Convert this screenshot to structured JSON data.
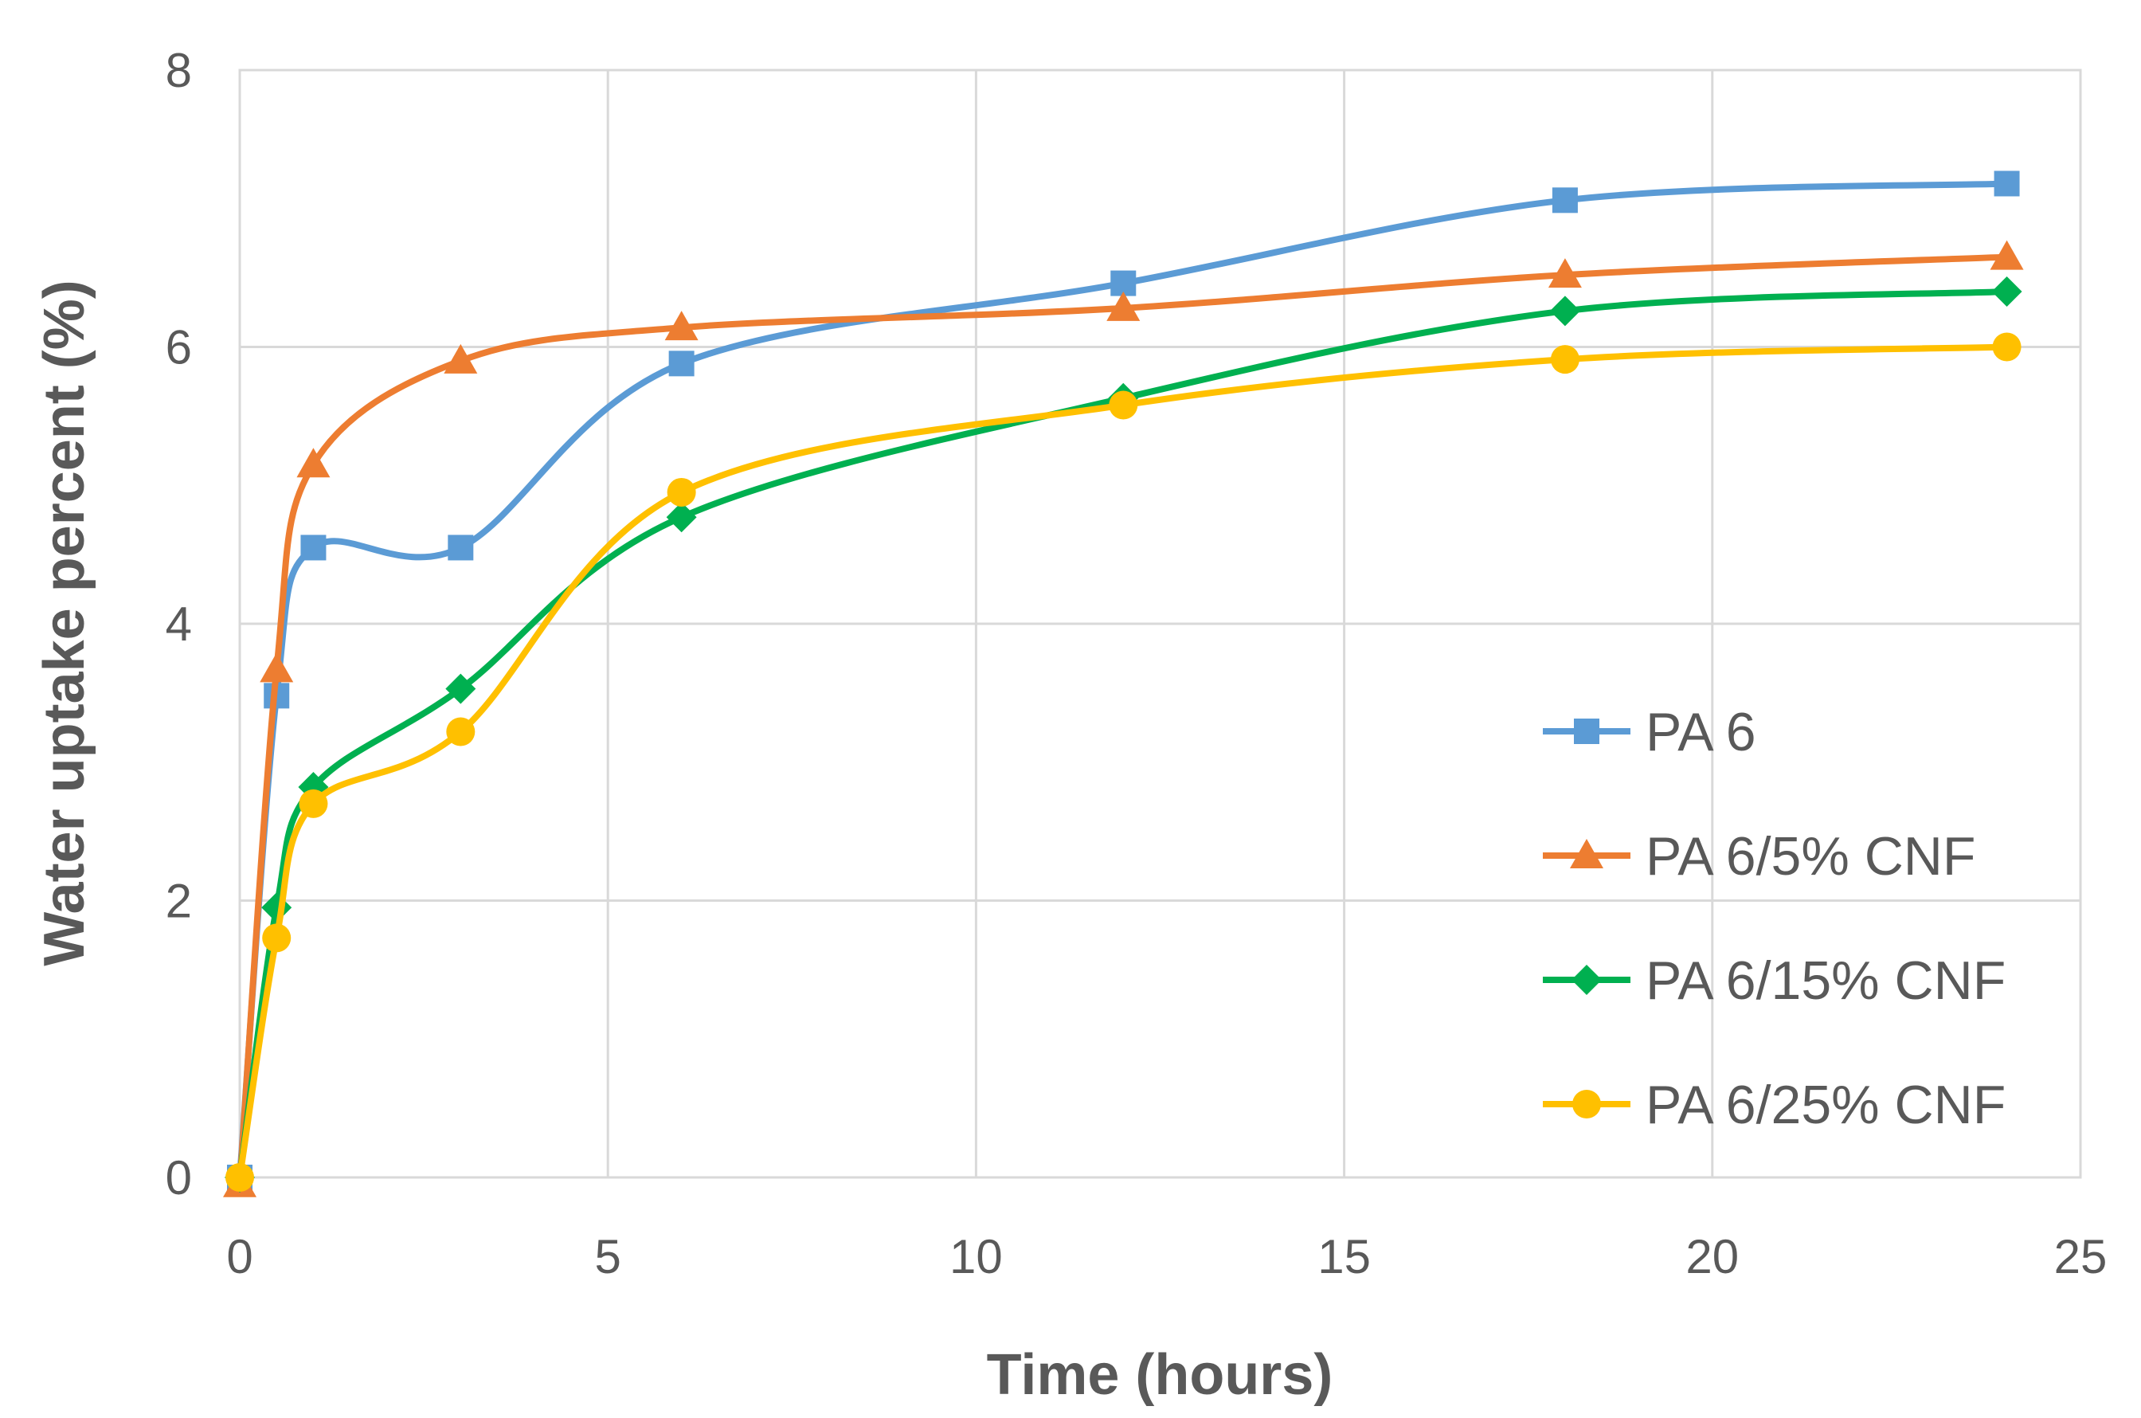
{
  "chart_data": {
    "type": "line",
    "title": "",
    "xlabel": "Time (hours)",
    "ylabel": "Water uptake percent (%)",
    "xlim": [
      0,
      25
    ],
    "ylim": [
      0,
      8
    ],
    "xticks": [
      0,
      5,
      10,
      15,
      20,
      25
    ],
    "yticks": [
      0,
      2,
      4,
      6,
      8
    ],
    "grid": true,
    "legend_position": "bottom-right",
    "series": [
      {
        "name": "PA 6",
        "color": "#5b9bd5",
        "marker": "square",
        "points": [
          [
            0,
            0
          ],
          [
            0.5,
            3.48
          ],
          [
            1,
            4.55
          ],
          [
            3,
            4.55
          ],
          [
            6,
            5.88
          ],
          [
            12,
            6.46
          ],
          [
            18,
            7.06
          ],
          [
            24,
            7.18
          ]
        ]
      },
      {
        "name": "PA 6/5% CNF",
        "color": "#ed7d31",
        "marker": "triangle",
        "points": [
          [
            0,
            -0.05
          ],
          [
            0.5,
            3.67
          ],
          [
            1,
            5.15
          ],
          [
            3,
            5.9
          ],
          [
            6,
            6.14
          ],
          [
            12,
            6.28
          ],
          [
            18,
            6.52
          ],
          [
            24,
            6.65
          ]
        ]
      },
      {
        "name": "PA 6/15% CNF",
        "color": "#00b050",
        "marker": "diamond",
        "points": [
          [
            0,
            0
          ],
          [
            0.5,
            1.95
          ],
          [
            1,
            2.82
          ],
          [
            3,
            3.53
          ],
          [
            6,
            4.77
          ],
          [
            12,
            5.63
          ],
          [
            18,
            6.26
          ],
          [
            24,
            6.4
          ]
        ]
      },
      {
        "name": "PA 6/25% CNF",
        "color": "#ffc000",
        "marker": "circle",
        "points": [
          [
            0,
            0
          ],
          [
            0.5,
            1.73
          ],
          [
            1,
            2.7
          ],
          [
            3,
            3.22
          ],
          [
            6,
            4.95
          ],
          [
            12,
            5.58
          ],
          [
            18,
            5.91
          ],
          [
            24,
            6.0
          ]
        ]
      }
    ]
  }
}
